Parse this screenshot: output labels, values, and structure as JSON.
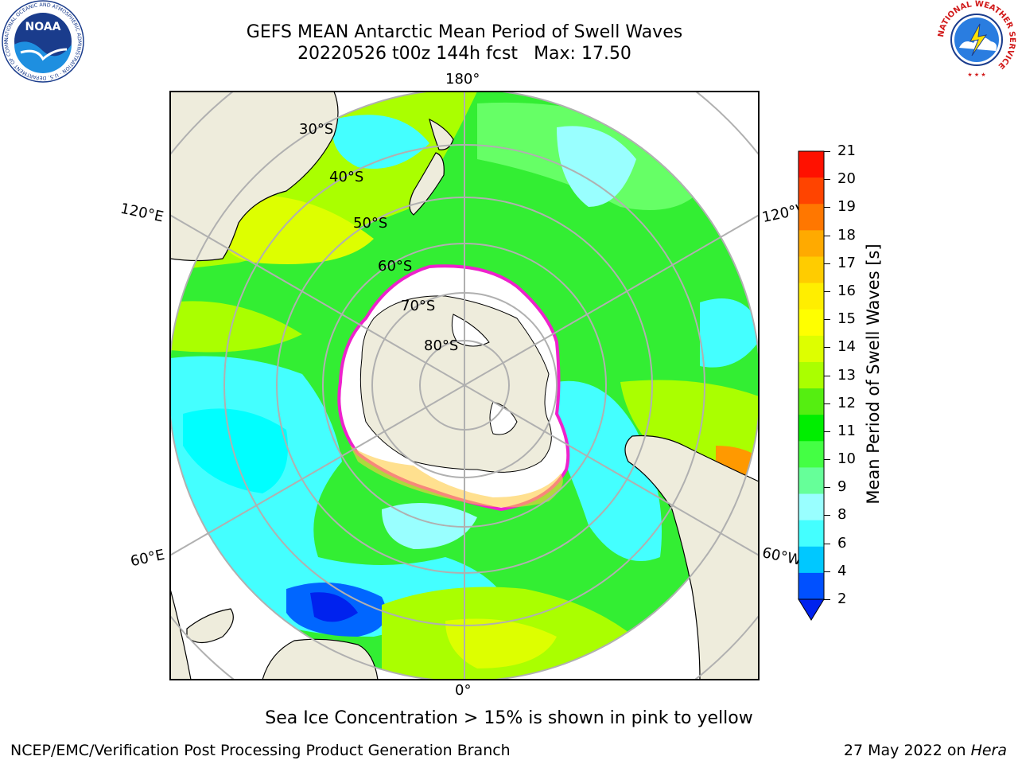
{
  "header": {
    "title_line1": "GEFS MEAN Antarctic Mean Period of Swell Waves",
    "title_date": "20220526 t00z 144h fcst",
    "title_max": "Max: 17.50"
  },
  "logos": {
    "noaa_text": "NOAA",
    "noaa_ring": "NATIONAL OCEANIC AND ATMOSPHERIC ADMINISTRATION · U.S. DEPARTMENT OF COMMERCE",
    "nws_ring": "NATIONAL WEATHER SERVICE"
  },
  "map": {
    "lon_labels": {
      "top": "180°",
      "bottom": "0°",
      "upper_left": "120°E",
      "upper_right": "120°W",
      "lower_left": "60°E",
      "lower_right": "60°W"
    },
    "lat_labels": [
      "30°S",
      "40°S",
      "50°S",
      "60°S",
      "70°S",
      "80°S"
    ],
    "colors": {
      "land": "#eeecdc",
      "ice": "#ffffff",
      "ice_edge": "#ee22cc",
      "grid": "#b0b0b0"
    }
  },
  "colorbar": {
    "label": "Mean Period of Swell Waves [s]",
    "ticks": [
      "2",
      "4",
      "6",
      "8",
      "9",
      "10",
      "11",
      "12",
      "13",
      "14",
      "15",
      "16",
      "17",
      "18",
      "19",
      "20",
      "21"
    ],
    "colors": [
      "#0050ff",
      "#00c8ff",
      "#44ffff",
      "#99ffff",
      "#66ff99",
      "#44ff44",
      "#00ee00",
      "#55ee11",
      "#aaff00",
      "#ddff00",
      "#ffff00",
      "#ffee00",
      "#ffcc00",
      "#ffaa00",
      "#ff7700",
      "#ff4400",
      "#ff1100"
    ],
    "under_color": "#0022ee"
  },
  "footer": {
    "caption": "Sea Ice Concentration > 15% is shown in pink to yellow",
    "credit": "NCEP/EMC/Verification Post Processing Product Generation Branch",
    "date_text": "27 May 2022 on",
    "machine": "Hera"
  }
}
